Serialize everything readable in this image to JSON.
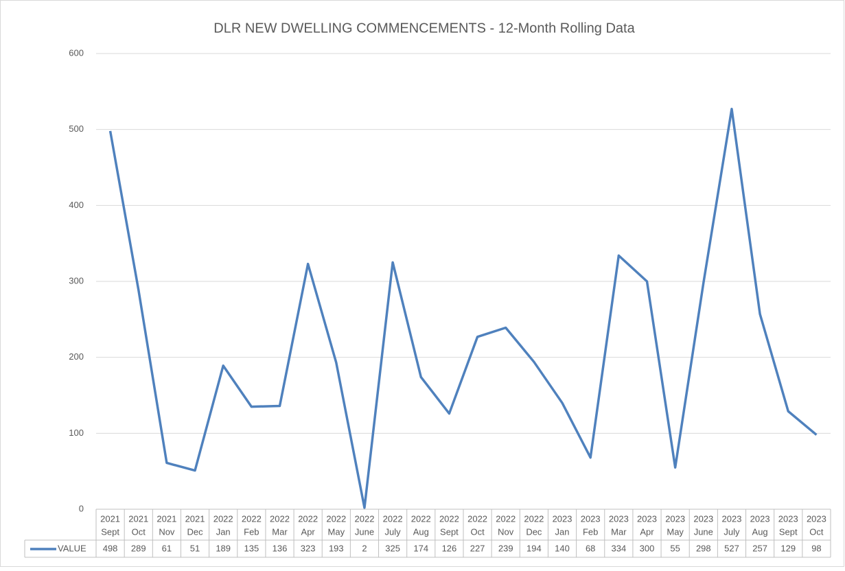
{
  "chart_data": {
    "type": "line",
    "title": "DLR NEW DWELLING COMMENCEMENTS - 12-Month Rolling Data",
    "categories": [
      [
        "2021",
        "Sept"
      ],
      [
        "2021",
        "Oct"
      ],
      [
        "2021",
        "Nov"
      ],
      [
        "2021",
        "Dec"
      ],
      [
        "2022",
        "Jan"
      ],
      [
        "2022",
        "Feb"
      ],
      [
        "2022",
        "Mar"
      ],
      [
        "2022",
        "Apr"
      ],
      [
        "2022",
        "May"
      ],
      [
        "2022",
        "June"
      ],
      [
        "2022",
        "July"
      ],
      [
        "2022",
        "Aug"
      ],
      [
        "2022",
        "Sept"
      ],
      [
        "2022",
        "Oct"
      ],
      [
        "2022",
        "Nov"
      ],
      [
        "2022",
        "Dec"
      ],
      [
        "2023",
        "Jan"
      ],
      [
        "2023",
        "Feb"
      ],
      [
        "2023",
        "Mar"
      ],
      [
        "2023",
        "Apr"
      ],
      [
        "2023",
        "May"
      ],
      [
        "2023",
        "June"
      ],
      [
        "2023",
        "July"
      ],
      [
        "2023",
        "Aug"
      ],
      [
        "2023",
        "Sept"
      ],
      [
        "2023",
        "Oct"
      ]
    ],
    "series": [
      {
        "name": "VALUE",
        "color": "#4f81bd",
        "values": [
          498,
          289,
          61,
          51,
          189,
          135,
          136,
          323,
          193,
          2,
          325,
          174,
          126,
          227,
          239,
          194,
          140,
          68,
          334,
          300,
          55,
          298,
          527,
          257,
          129,
          98
        ]
      }
    ],
    "ylim": [
      0,
      600
    ],
    "yticks": [
      0,
      100,
      200,
      300,
      400,
      500,
      600
    ],
    "grid": true,
    "data_table": true
  }
}
